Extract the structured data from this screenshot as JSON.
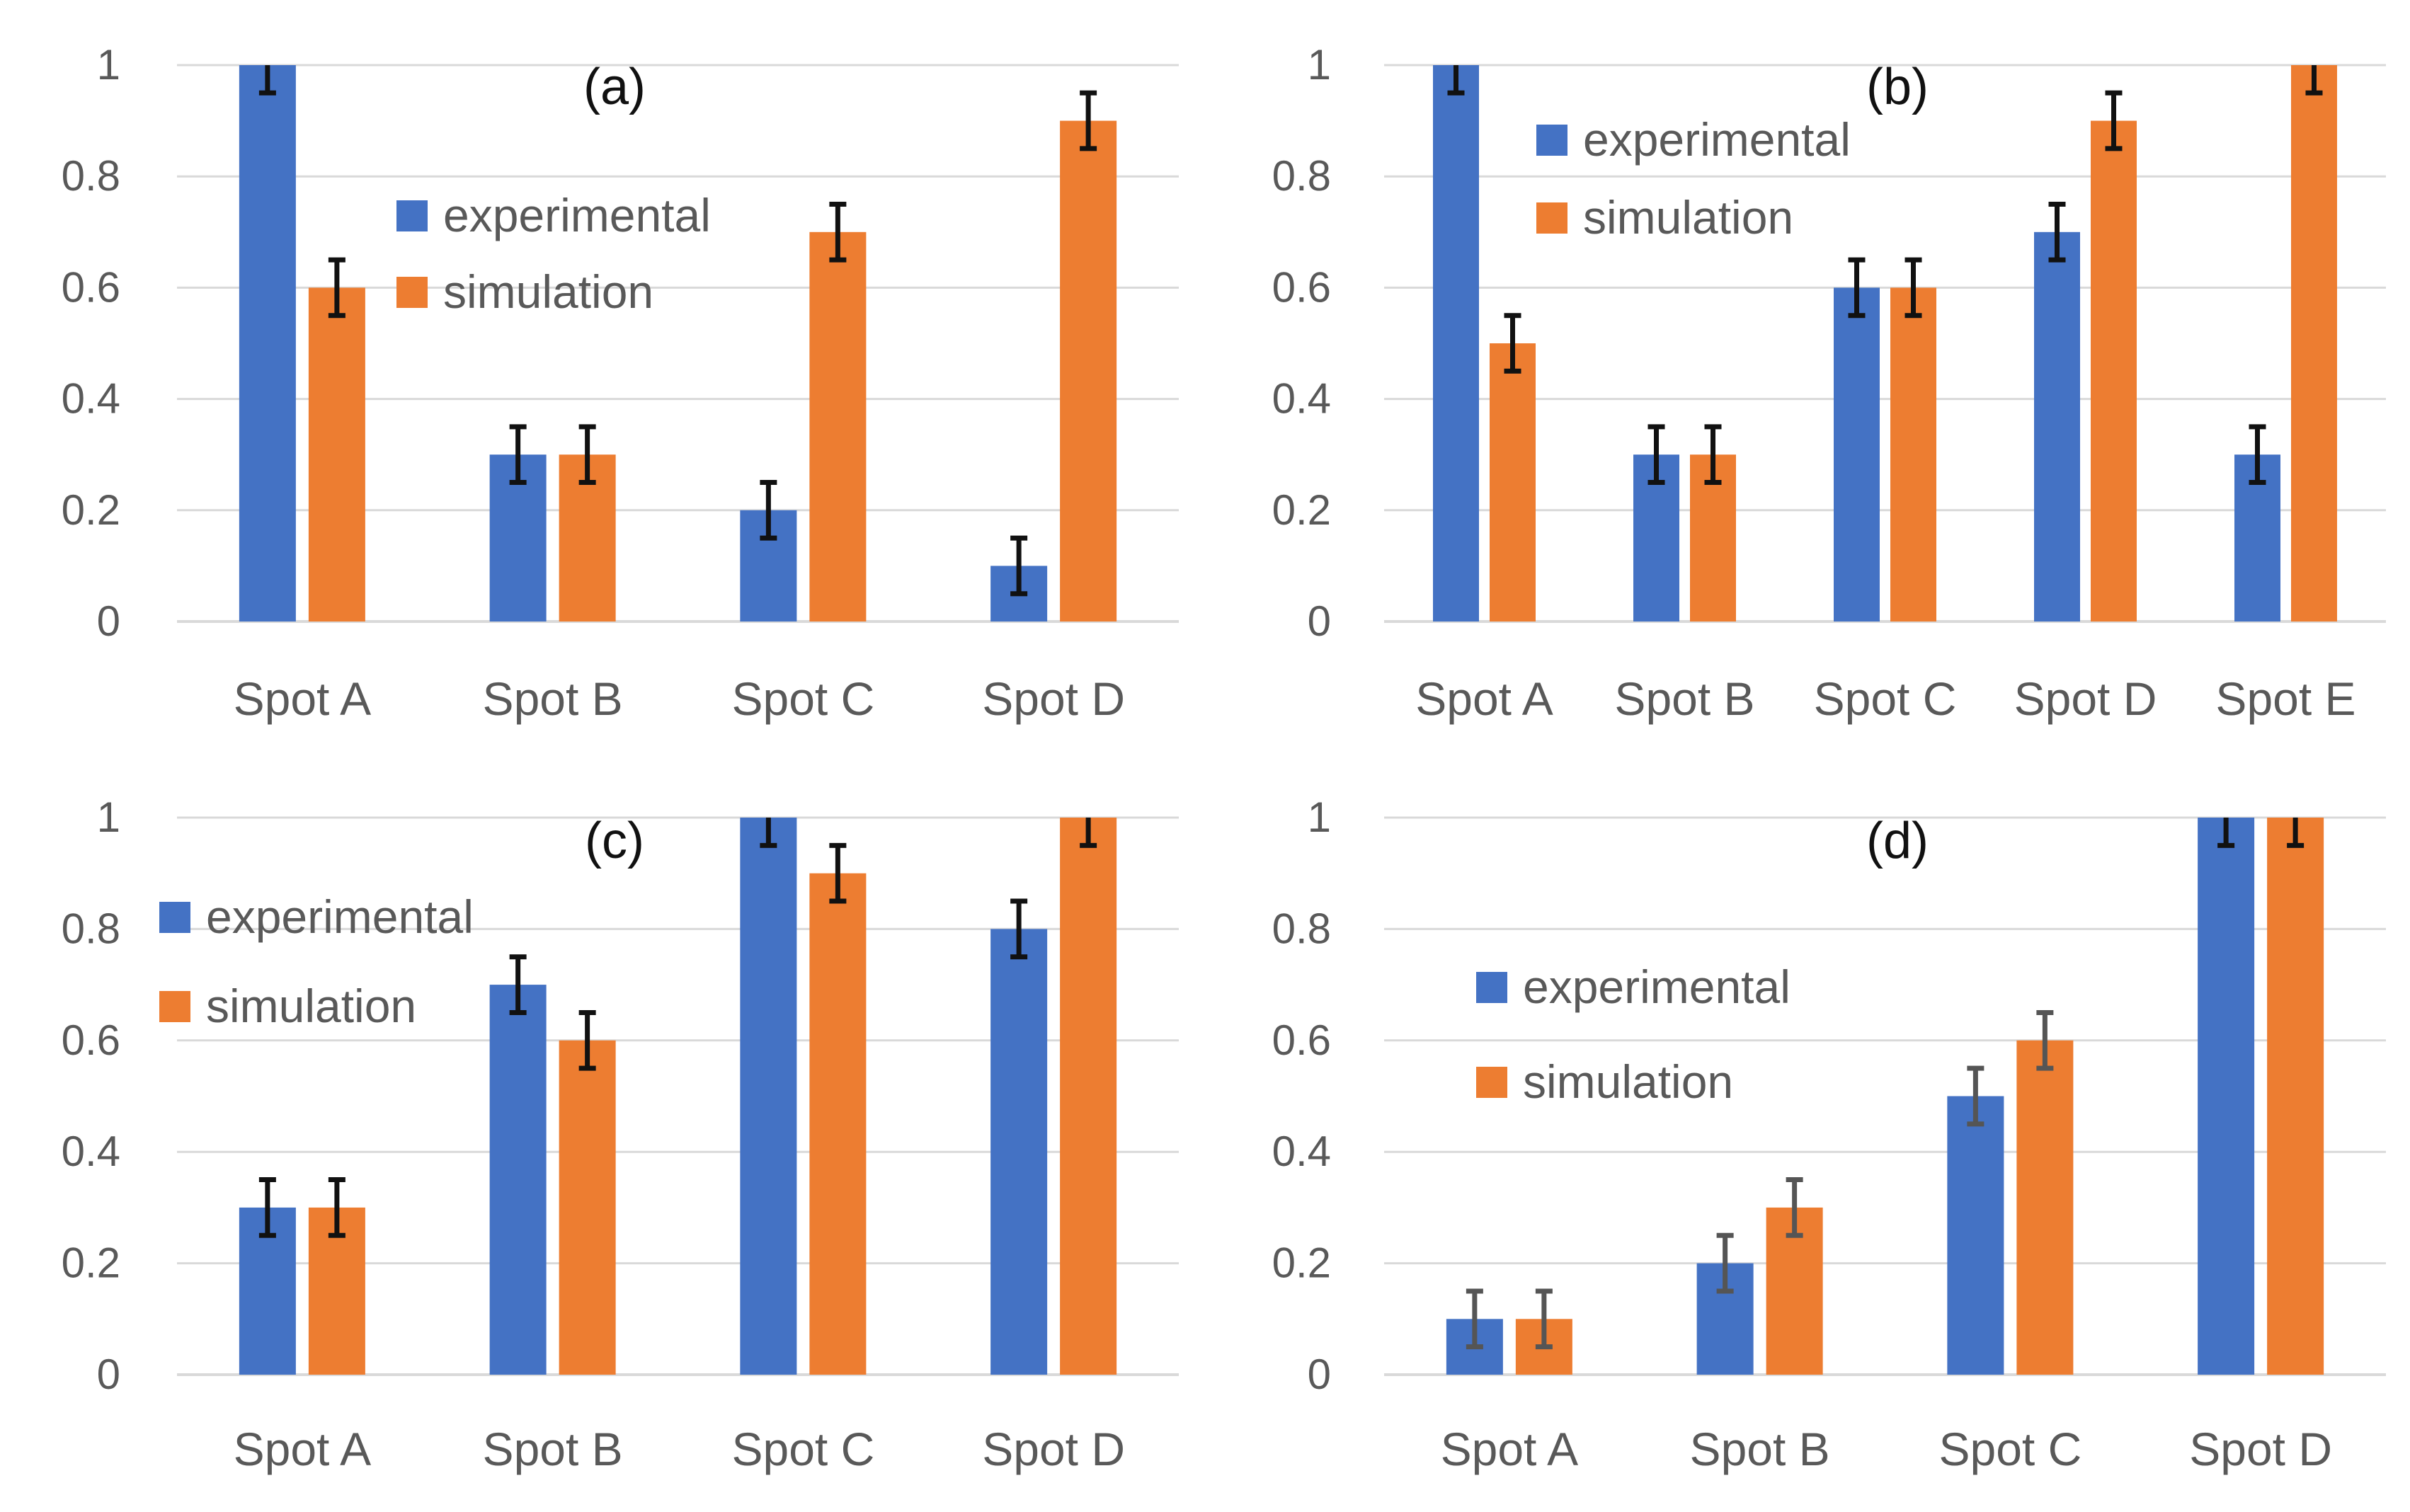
{
  "colors": {
    "experimental": "#4472C4",
    "simulation": "#ED7D31",
    "grid": "#D9D9D9",
    "text": "#595959",
    "error_bar": "#111111",
    "error_bar_light": "#555555"
  },
  "chart_data": [
    {
      "type": "bar",
      "panel_label": "(a)",
      "categories": [
        "Spot A",
        "Spot B",
        "Spot C",
        "Spot D"
      ],
      "series": [
        {
          "name": "experimental",
          "values": [
            1.0,
            0.3,
            0.2,
            0.1
          ]
        },
        {
          "name": "simulation",
          "values": [
            0.6,
            0.3,
            0.7,
            0.9
          ]
        }
      ],
      "error": 0.05,
      "yticks": [
        "0",
        "0.2",
        "0.4",
        "0.6",
        "0.8",
        "1"
      ],
      "ylim": [
        0,
        1
      ],
      "legend_position": "middle-center",
      "grid": true
    },
    {
      "type": "bar",
      "panel_label": "(b)",
      "categories": [
        "Spot A",
        "Spot B",
        "Spot C",
        "Spot D",
        "Spot E"
      ],
      "series": [
        {
          "name": "experimental",
          "values": [
            1.0,
            0.3,
            0.6,
            0.7,
            0.3
          ]
        },
        {
          "name": "simulation",
          "values": [
            0.5,
            0.3,
            0.6,
            0.9,
            1.0
          ]
        }
      ],
      "error": 0.05,
      "yticks": [
        "0",
        "0.2",
        "0.4",
        "0.6",
        "0.8",
        "1"
      ],
      "ylim": [
        0,
        1
      ],
      "legend_position": "top-left",
      "grid": true
    },
    {
      "type": "bar",
      "panel_label": "(c)",
      "categories": [
        "Spot A",
        "Spot B",
        "Spot C",
        "Spot D"
      ],
      "series": [
        {
          "name": "experimental",
          "values": [
            0.3,
            0.7,
            1.0,
            0.8
          ]
        },
        {
          "name": "simulation",
          "values": [
            0.3,
            0.6,
            0.9,
            1.0
          ]
        }
      ],
      "error": 0.05,
      "yticks": [
        "0",
        "0.2",
        "0.4",
        "0.6",
        "0.8",
        "1"
      ],
      "ylim": [
        0,
        1
      ],
      "legend_position": "top-left",
      "grid": true
    },
    {
      "type": "bar",
      "panel_label": "(d)",
      "categories": [
        "Spot A",
        "Spot B",
        "Spot C",
        "Spot D"
      ],
      "series": [
        {
          "name": "experimental",
          "values": [
            0.1,
            0.2,
            0.5,
            1.0
          ]
        },
        {
          "name": "simulation",
          "values": [
            0.1,
            0.3,
            0.6,
            1.0
          ]
        }
      ],
      "error": 0.05,
      "yticks": [
        "0",
        "0.2",
        "0.4",
        "0.6",
        "0.8",
        "1"
      ],
      "ylim": [
        0,
        1
      ],
      "legend_position": "middle-left",
      "grid": true
    }
  ]
}
